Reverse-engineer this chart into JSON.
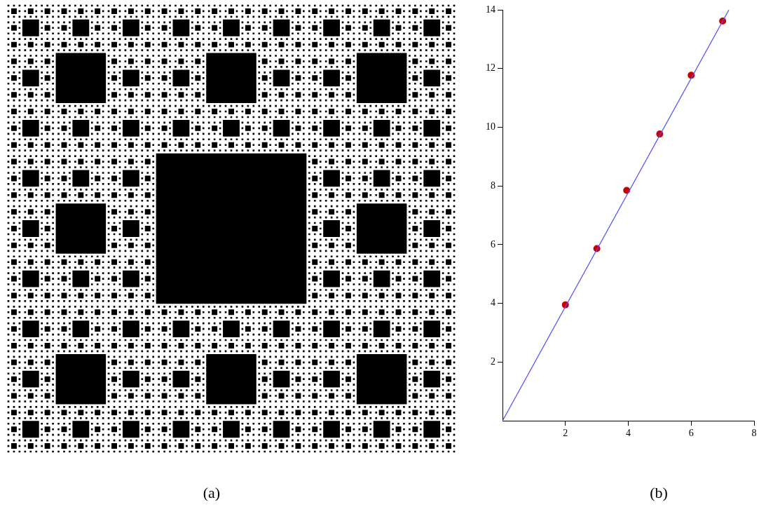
{
  "chart_data": {
    "type": "scatter",
    "series": [
      {
        "type": "line",
        "marker": "none",
        "color": "#4d4dff",
        "x": [
          0,
          7.2
        ],
        "values": [
          0,
          14
        ]
      },
      {
        "marker": "circle",
        "color": "#cc0000",
        "x": [
          2,
          3,
          3.95,
          5,
          6,
          7
        ],
        "values": [
          3.95,
          5.87,
          7.85,
          9.77,
          11.77,
          13.62
        ]
      }
    ],
    "xlim": [
      0,
      8
    ],
    "xticks": [
      2,
      4,
      6,
      8
    ],
    "ylim": [
      0,
      14
    ],
    "yticks": [
      2,
      4,
      6,
      8,
      10,
      12,
      14
    ],
    "grid": false,
    "legend": false,
    "line_style": "solid",
    "annotations": [
      "(a)",
      "(b)"
    ]
  }
}
